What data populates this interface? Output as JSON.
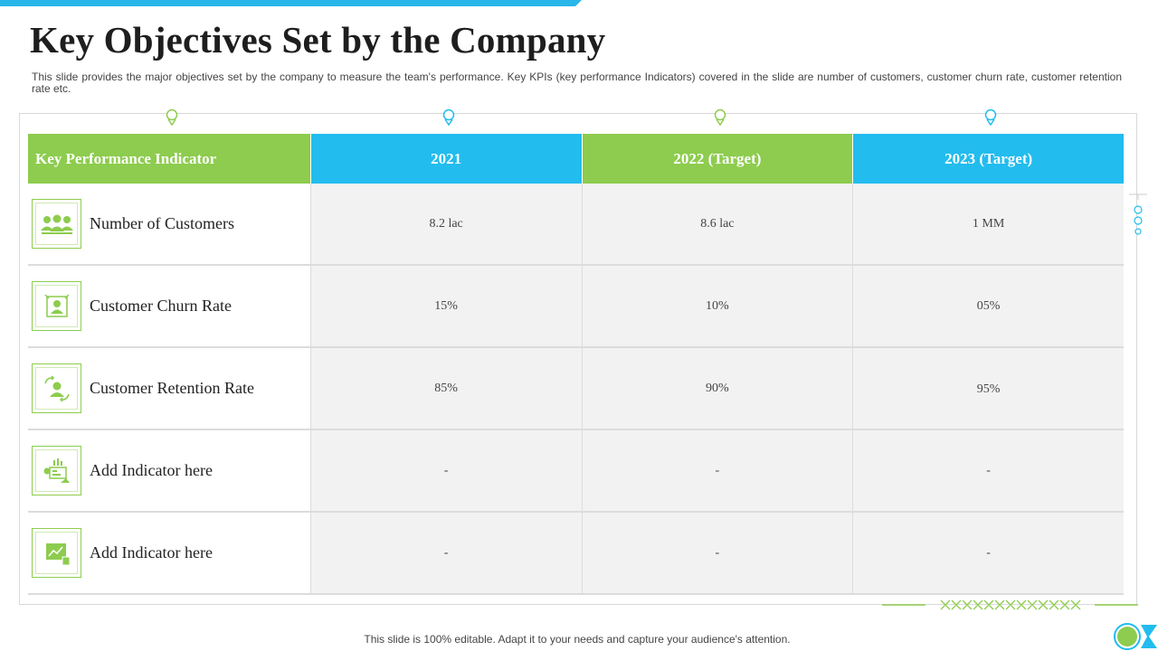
{
  "title": "Key Objectives Set by the Company",
  "subtitle": "This slide provides the major objectives set by the company to measure the team's performance. Key KPIs (key performance Indicators) covered in the slide are number of customers, customer churn rate, customer retention rate etc.",
  "table": {
    "headers": [
      "Key Performance Indicator",
      "2021",
      "2022 (Target)",
      "2023 (Target)"
    ],
    "rows": [
      {
        "label": "Number of Customers",
        "icon": "customers-group-icon",
        "values": [
          "8.2 lac",
          "8.6 lac",
          "1 MM"
        ]
      },
      {
        "label": "Customer Churn Rate",
        "icon": "churn-user-icon",
        "values": [
          "15%",
          "10%",
          "05%"
        ]
      },
      {
        "label": "Customer Retention Rate",
        "icon": "retention-user-icon",
        "values": [
          "85%",
          "90%",
          "95%"
        ]
      },
      {
        "label": "Add Indicator here",
        "icon": "dashboard-chart-icon",
        "values": [
          "-",
          "-",
          "-"
        ]
      },
      {
        "label": "Add Indicator here",
        "icon": "line-chart-icon",
        "values": [
          "-",
          "-",
          "-"
        ]
      }
    ]
  },
  "footer": "This slide is 100% editable. Adapt it to your needs and capture your audience's attention.",
  "colors": {
    "green": "#8dcc4e",
    "blue": "#22bcee",
    "cell_bg": "#f2f2f2"
  }
}
